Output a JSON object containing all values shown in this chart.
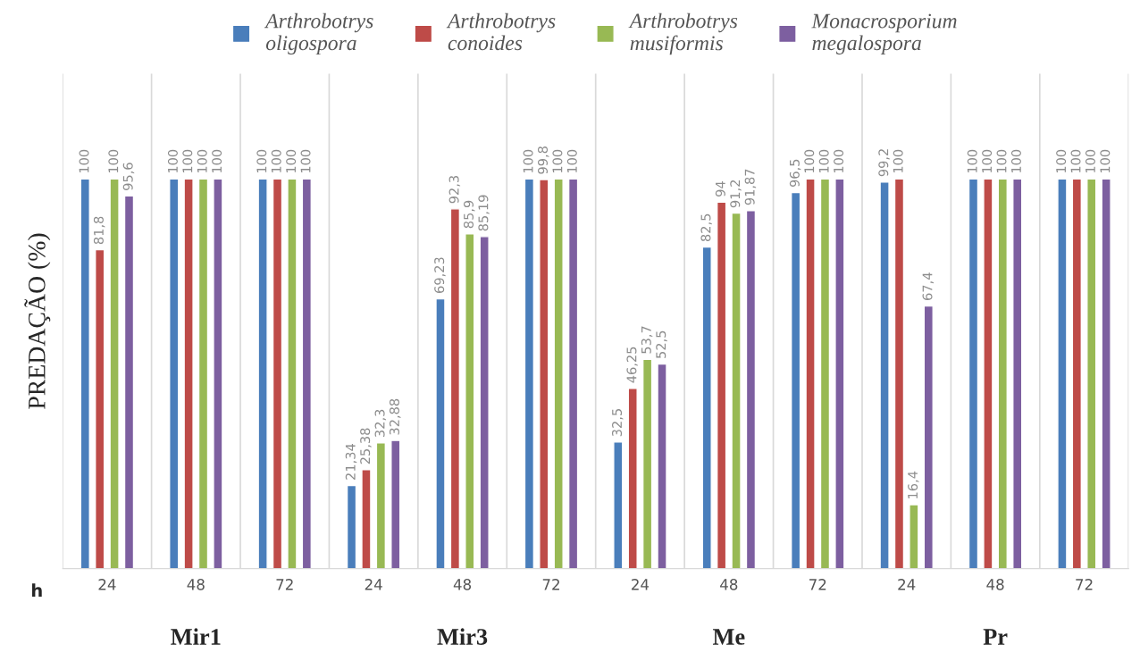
{
  "chart_data": {
    "type": "bar",
    "ylabel": "PREDAÇÃO (%)",
    "xlabel": "h",
    "categories": [
      "24",
      "48",
      "72",
      "24",
      "48",
      "72",
      "24",
      "48",
      "72",
      "24",
      "48",
      "72"
    ],
    "series": [
      {
        "name": "Arthrobotrys oligospora",
        "color": "#4a7ebb",
        "values": [
          100,
          100,
          100,
          21.34,
          69.23,
          100,
          32.5,
          82.5,
          96.5,
          99.2,
          100,
          100
        ],
        "value_labels": [
          "100",
          "100",
          "100",
          "21,34",
          "69,23",
          "100",
          "32,5",
          "82,5",
          "96,5",
          "99,2",
          "100",
          "100"
        ]
      },
      {
        "name": "Arthrobotrys conoides",
        "color": "#be4b48",
        "values": [
          81.8,
          100,
          100,
          25.38,
          92.3,
          99.8,
          46.25,
          94,
          100,
          100,
          100,
          100
        ],
        "value_labels": [
          "81,8",
          "100",
          "100",
          "25,38",
          "92,3",
          "99,8",
          "46,25",
          "94",
          "100",
          "100",
          "100",
          "100"
        ]
      },
      {
        "name": "Arthrobotrys musiformis",
        "color": "#98b954",
        "values": [
          100,
          100,
          100,
          32.3,
          85.9,
          100,
          53.7,
          91.2,
          100,
          16.4,
          100,
          100
        ],
        "value_labels": [
          "100",
          "100",
          "100",
          "32,3",
          "85,9",
          "100",
          "53,7",
          "91,2",
          "100",
          "16,4",
          "100",
          "100"
        ]
      },
      {
        "name": "Monacrosporium megalospora",
        "color": "#7d5fa0",
        "values": [
          95.6,
          100,
          100,
          32.88,
          85.19,
          100,
          52.5,
          91.87,
          100,
          67.4,
          100,
          100
        ],
        "value_labels": [
          "95,6",
          "100",
          "100",
          "32,88",
          "85,19",
          "100",
          "52,5",
          "91,87",
          "100",
          "67,4",
          "100",
          "100"
        ]
      }
    ],
    "grid": "x",
    "legend": "top",
    "annotations": [
      "Mir1",
      "Mir3",
      "Me",
      "Pr"
    ]
  }
}
